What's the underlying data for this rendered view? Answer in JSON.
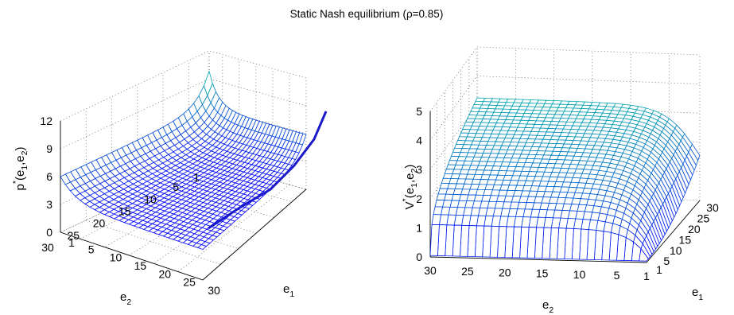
{
  "figure_title": "Static Nash equilibrium (ρ=0.85)",
  "chart_data": [
    {
      "type": "surface",
      "title": "Static Nash equilibrium (ρ=0.85)",
      "zlabel": {
        "base": "p",
        "sup": "*",
        "args": "(e",
        "sub1": "1",
        "mid": ",e",
        "sub2": "2",
        "close": ")"
      },
      "xlabel": {
        "base": "e",
        "sub": "1"
      },
      "ylabel": {
        "base": "e",
        "sub": "2"
      },
      "z_ticks": [
        "0",
        "3",
        "6",
        "9",
        "12"
      ],
      "e1_ticks": [
        "1",
        "5",
        "10",
        "15",
        "20",
        "25",
        "30"
      ],
      "e2_ticks": [
        "1",
        "5",
        "10",
        "15",
        "20",
        "25",
        "30"
      ],
      "e1_range": [
        1,
        30
      ],
      "e2_range": [
        1,
        30
      ],
      "zlim": [
        0,
        12
      ],
      "grid": true,
      "colormap": "winter",
      "series": [
        {
          "kind": "mesh",
          "z_min": 3.3,
          "z_at_e1_1": 9.3,
          "z_at_e2_1": 9.5,
          "z_corner_1_1": 12.0
        },
        {
          "kind": "curve",
          "color": "#1a1acc",
          "points": [
            [
              1,
              9.5
            ],
            [
              5,
              6.6
            ],
            [
              10,
              5.5
            ],
            [
              15,
              4.7
            ],
            [
              20,
              3.6
            ],
            [
              25,
              2.6
            ],
            [
              30,
              1.4
            ]
          ]
        }
      ]
    },
    {
      "type": "surface",
      "zlabel": {
        "base": "V",
        "sup": "*",
        "args": "(e",
        "sub1": "1",
        "mid": ",e",
        "sub2": "2",
        "close": ")"
      },
      "xlabel": {
        "base": "e",
        "sub": "1"
      },
      "ylabel": {
        "base": "e",
        "sub": "2"
      },
      "z_ticks": [
        "0",
        "1",
        "2",
        "3",
        "4",
        "5"
      ],
      "e1_ticks": [
        "1",
        "5",
        "10",
        "15",
        "20",
        "25",
        "30"
      ],
      "e2_ticks": [
        "30",
        "25",
        "20",
        "15",
        "10",
        "5",
        "1"
      ],
      "e1_range": [
        1,
        30
      ],
      "e2_range": [
        1,
        30
      ],
      "zlim": [
        0,
        5
      ],
      "grid": true,
      "colormap": "winter",
      "series": [
        {
          "kind": "mesh",
          "z_far_edge": 3.2,
          "z_near_edge": 0.05,
          "z_spike_max": 4.8
        }
      ]
    }
  ]
}
